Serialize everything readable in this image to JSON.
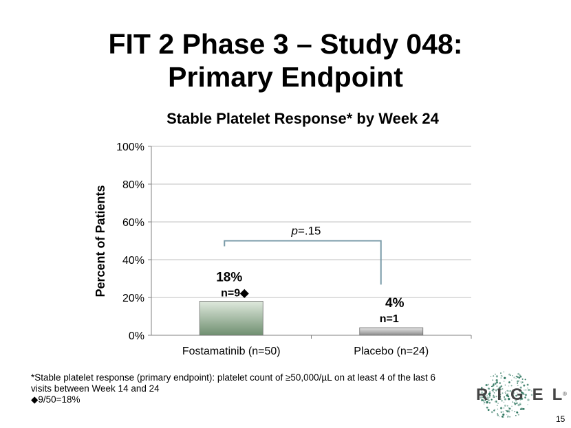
{
  "slide": {
    "title_line1": "FIT 2 Phase 3 – Study 048:",
    "title_line2": "Primary Endpoint",
    "page_number": "15"
  },
  "chart_data": {
    "type": "bar",
    "title": "Stable Platelet Response* by Week 24",
    "ylabel": "Percent of Patients",
    "xlabel": "",
    "categories": [
      "Fostamatinib (n=50)",
      "Placebo (n=24)"
    ],
    "values": [
      18,
      4
    ],
    "value_labels": [
      "18%",
      "4%"
    ],
    "count_labels": [
      "n=9◆",
      "n=1"
    ],
    "bar_colors": [
      "#93ab93",
      "#a6a6a6"
    ],
    "ylim": [
      0,
      100
    ],
    "yticks": [
      "0%",
      "20%",
      "40%",
      "60%",
      "80%",
      "100%"
    ],
    "ytick_values": [
      0,
      20,
      40,
      60,
      80,
      100
    ],
    "grid": true,
    "legend": "none",
    "annotation": {
      "p_prefix": "p",
      "p_value": "=.15",
      "bracket_heights": [
        50,
        50,
        25
      ]
    }
  },
  "footnotes": {
    "line1": "*Stable platelet response (primary endpoint): platelet count of ≥50,000/µL on at least 4 of the last 6",
    "line2": "visits between Week 14 and 24",
    "line3": "◆9/50=18%"
  },
  "logo": {
    "text": "RIGEL",
    "registered_mark": "®",
    "color": "#1d6b52"
  }
}
